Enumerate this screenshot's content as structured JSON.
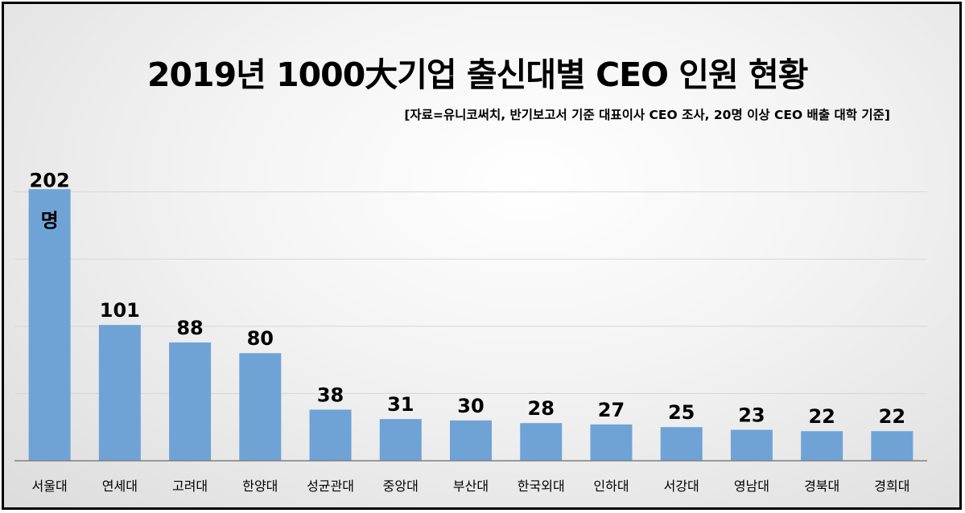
{
  "chart_data": {
    "type": "bar",
    "title": "2019년 1000大기업 출신대별 CEO 인원 현황",
    "subtitle": "[자료=유니코써치, 반기보고서 기준 대표이사 CEO 조사, 20명 이상 CEO 배출 대학 기준]",
    "categories": [
      "서울대",
      "연세대",
      "고려대",
      "한양대",
      "성균관대",
      "중앙대",
      "부산대",
      "한국외대",
      "인하대",
      "서강대",
      "영남대",
      "경북대",
      "경희대"
    ],
    "values": [
      202,
      101,
      88,
      80,
      38,
      31,
      30,
      28,
      27,
      25,
      23,
      22,
      22
    ],
    "value_labels": [
      "202",
      "101",
      "88",
      "80",
      "38",
      "31",
      "30",
      "28",
      "27",
      "25",
      "23",
      "22",
      "22"
    ],
    "first_bar_unit": "명",
    "ylim": [
      0,
      250
    ],
    "grid": true,
    "legend": "none",
    "bar_color": "#6fa3d6",
    "grid_color": "#d6d6d6",
    "axis_color": "#7f7f7f"
  }
}
